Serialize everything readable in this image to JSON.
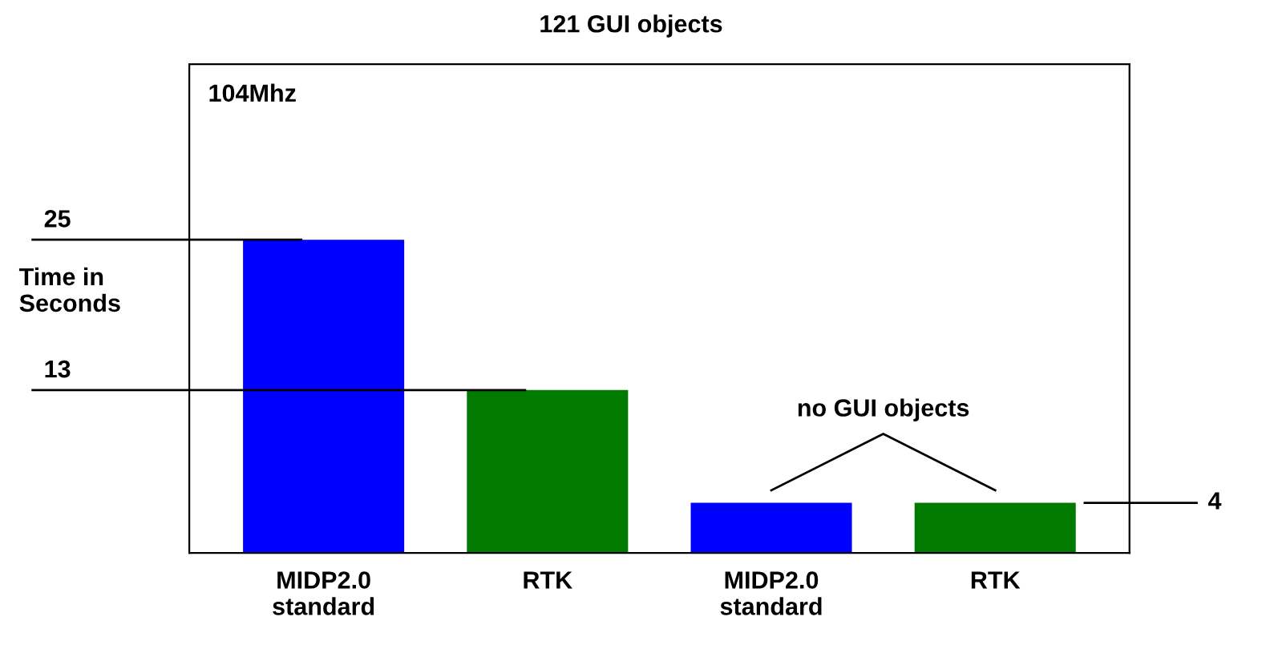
{
  "chart_data": {
    "type": "bar",
    "title": "121 GUI objects",
    "ylabel": "Time in\nSeconds",
    "categories": [
      "MIDP2.0\nstandard",
      "RTK",
      "MIDP2.0\nstandard",
      "RTK"
    ],
    "values": [
      25,
      13,
      4,
      4
    ],
    "colors": [
      "#0000ff",
      "#007a00",
      "#0000ff",
      "#007a00"
    ],
    "ylim": [
      0,
      39
    ],
    "tick_labels": "x",
    "grid": false,
    "legend": false,
    "ref_lines": [
      {
        "axis": "y",
        "value": 25,
        "label": "25"
      },
      {
        "axis": "y",
        "value": 13,
        "label": "13"
      },
      {
        "axis": "y",
        "value": 4,
        "label": "4"
      }
    ],
    "annotations": [
      "104Mhz",
      "no GUI objects"
    ]
  }
}
